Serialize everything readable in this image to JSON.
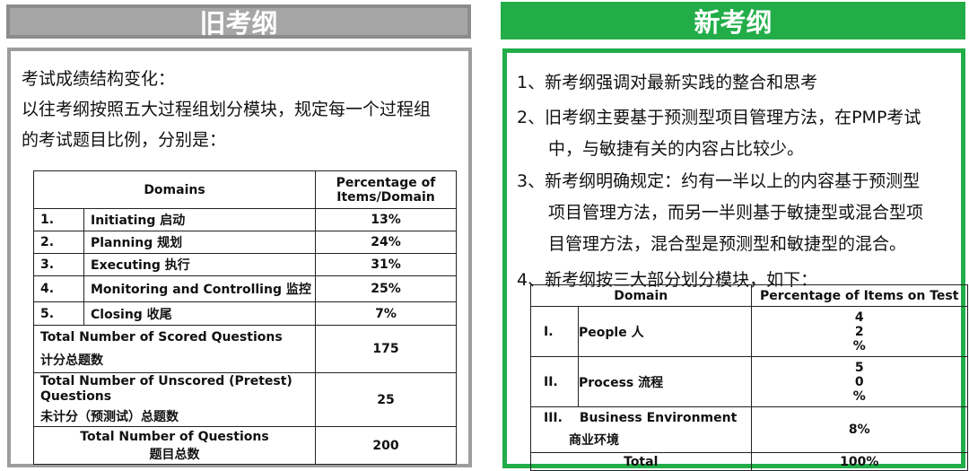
{
  "old": {
    "banner": "旧考纲",
    "intro_line1": "考试成绩结构变化：",
    "intro_line2": "以往考纲按照五大过程组划分模块，规定每一个过程组",
    "intro_line3": "的考试题目比例，分别是：",
    "table": {
      "header_domains": "Domains",
      "header_pct_line1": "Percentage of",
      "header_pct_line2": "Items/Domain",
      "rows": [
        {
          "num": "1.",
          "label": "Initiating  启动",
          "value": "13%"
        },
        {
          "num": "2.",
          "label": "Planning   规划",
          "value": "24%"
        },
        {
          "num": "3.",
          "label": "Executing  执行",
          "value": "31%"
        },
        {
          "num": "4.",
          "label": "Monitoring and Controlling 监控",
          "value": "25%"
        },
        {
          "num": "5.",
          "label": "Closing  收尾",
          "value": "7%"
        }
      ],
      "scored_label_en": "Total Number of Scored Questions",
      "scored_label_cn": "计分总题数",
      "scored_value": "175",
      "unscored_label_en": "Total Number of Unscored (Pretest) Questions",
      "unscored_label_cn": "未计分（预测试）总题数",
      "unscored_value": "25",
      "total_label_en": "Total Number of Questions",
      "total_label_cn": "题目总数",
      "total_value": "200"
    }
  },
  "new": {
    "banner": "新考纲",
    "p1": "1、新考纲强调对最新实践的整合和思考",
    "p2_line1": "2、旧考纲主要基于预测型项目管理方法，在PMP考试",
    "p2_line2": "中，与敏捷有关的内容占比较少。",
    "p3_line1": "3、新考纲明确规定：约有一半以上的内容基于预测型",
    "p3_line2": "项目管理方法，而另一半则基于敏捷型或混合型项",
    "p3_line3": "目管理方法，混合型是预测型和敏捷型的混合。",
    "p4": "4、新考纲按三大部分划分模块，如下：",
    "table": {
      "header_domain": "Domain",
      "header_pct": "Percentage of Items on Test",
      "people_num": "I.",
      "people_label": "People 人",
      "people_value_chars": [
        "4",
        "2",
        "%"
      ],
      "process_num": "II.",
      "process_label": "Process  流程",
      "process_value_chars": [
        "5",
        "0",
        "%"
      ],
      "business_num": "III.",
      "business_label_en": "Business Environment",
      "business_label_cn": "商业环境",
      "business_value": "8%",
      "total_label": "Total",
      "total_value": "100%"
    }
  }
}
